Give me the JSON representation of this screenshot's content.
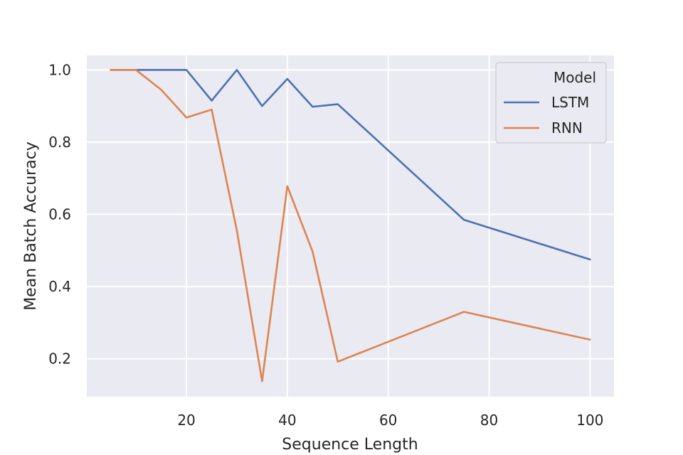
{
  "chart_data": {
    "type": "line",
    "title": "",
    "xlabel": "Sequence Length",
    "ylabel": "Mean Batch Accuracy",
    "xlim": [
      0.25,
      104.75
    ],
    "ylim": [
      0.095,
      1.04
    ],
    "xticks": [
      20,
      40,
      60,
      80,
      100
    ],
    "yticks": [
      0.2,
      0.4,
      0.6,
      0.8,
      1.0
    ],
    "xtick_labels": [
      "20",
      "40",
      "60",
      "80",
      "100"
    ],
    "ytick_labels": [
      "0.2",
      "0.4",
      "0.6",
      "0.8",
      "1.0"
    ],
    "grid": true,
    "legend": {
      "title": "Model",
      "placement": "top-right"
    },
    "series": [
      {
        "name": "LSTM",
        "color": "#4c72b0",
        "x": [
          5,
          10,
          15,
          20,
          25,
          30,
          35,
          40,
          45,
          50,
          75,
          100
        ],
        "y": [
          1.0,
          1.0,
          1.0,
          1.0,
          0.915,
          1.0,
          0.9,
          0.975,
          0.898,
          0.905,
          0.585,
          0.475
        ]
      },
      {
        "name": "RNN",
        "color": "#dd8452",
        "x": [
          5,
          10,
          15,
          20,
          25,
          30,
          35,
          40,
          45,
          50,
          75,
          100
        ],
        "y": [
          1.0,
          1.0,
          0.945,
          0.868,
          0.89,
          0.555,
          0.138,
          0.678,
          0.497,
          0.192,
          0.33,
          0.253
        ]
      }
    ]
  }
}
